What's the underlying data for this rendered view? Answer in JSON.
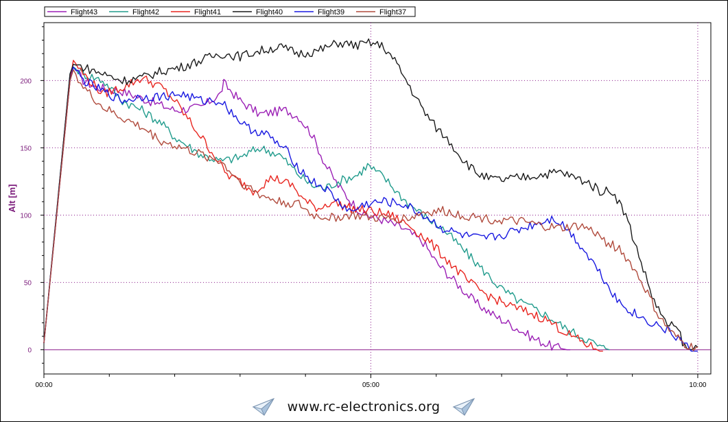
{
  "chart_data": {
    "type": "line",
    "ylabel": "Alt [m]",
    "xlabel": "",
    "xlim": [
      0,
      10.2
    ],
    "ylim": [
      -18,
      243
    ],
    "x_ticks": [
      {
        "v": 0,
        "label": "00:00"
      },
      {
        "v": 5,
        "label": "05:00"
      },
      {
        "v": 10,
        "label": "10:00"
      }
    ],
    "x_minor": [
      1,
      2,
      3,
      4,
      6,
      7,
      8,
      9
    ],
    "y_ticks": [
      {
        "v": 0,
        "label": "0"
      },
      {
        "v": 50,
        "label": "50"
      },
      {
        "v": 100,
        "label": "100"
      },
      {
        "v": 150,
        "label": "150"
      },
      {
        "v": 200,
        "label": "200"
      }
    ],
    "grid": true,
    "legend_position": "top-left",
    "series": [
      {
        "name": "Flight43",
        "color": "#9b1fb5",
        "points": [
          [
            0,
            5
          ],
          [
            0.4,
            205
          ],
          [
            0.45,
            210
          ],
          [
            0.6,
            200
          ],
          [
            0.8,
            195
          ],
          [
            1.2,
            192
          ],
          [
            1.6,
            185
          ],
          [
            2.0,
            178
          ],
          [
            2.4,
            180
          ],
          [
            2.7,
            190
          ],
          [
            2.75,
            198
          ],
          [
            3.0,
            185
          ],
          [
            3.3,
            175
          ],
          [
            3.7,
            178
          ],
          [
            3.9,
            173
          ],
          [
            4.1,
            160
          ],
          [
            4.3,
            138
          ],
          [
            4.5,
            122
          ],
          [
            4.7,
            110
          ],
          [
            4.9,
            100
          ],
          [
            5.1,
            98
          ],
          [
            5.5,
            90
          ],
          [
            5.8,
            80
          ],
          [
            6.0,
            65
          ],
          [
            6.3,
            50
          ],
          [
            6.6,
            35
          ],
          [
            6.9,
            25
          ],
          [
            7.2,
            17
          ],
          [
            7.5,
            8
          ],
          [
            7.8,
            2
          ],
          [
            8.0,
            0
          ],
          [
            8.05,
            0
          ]
        ]
      },
      {
        "name": "Flight42",
        "color": "#209b8c",
        "points": [
          [
            0,
            5
          ],
          [
            0.4,
            205
          ],
          [
            0.45,
            210
          ],
          [
            0.6,
            205
          ],
          [
            0.9,
            200
          ],
          [
            1.2,
            185
          ],
          [
            1.5,
            178
          ],
          [
            1.8,
            168
          ],
          [
            2.0,
            158
          ],
          [
            2.4,
            145
          ],
          [
            2.7,
            140
          ],
          [
            3.0,
            143
          ],
          [
            3.3,
            150
          ],
          [
            3.6,
            145
          ],
          [
            3.9,
            130
          ],
          [
            4.1,
            122
          ],
          [
            4.3,
            120
          ],
          [
            4.5,
            125
          ],
          [
            4.8,
            130
          ],
          [
            4.95,
            137
          ],
          [
            5.2,
            128
          ],
          [
            5.5,
            112
          ],
          [
            5.8,
            100
          ],
          [
            6.1,
            90
          ],
          [
            6.4,
            75
          ],
          [
            6.7,
            60
          ],
          [
            7.0,
            45
          ],
          [
            7.3,
            35
          ],
          [
            7.6,
            28
          ],
          [
            7.8,
            22
          ],
          [
            8.0,
            15
          ],
          [
            8.3,
            8
          ],
          [
            8.5,
            2
          ],
          [
            8.65,
            0
          ]
        ]
      },
      {
        "name": "Flight41",
        "color": "#e8251f",
        "points": [
          [
            0,
            5
          ],
          [
            0.4,
            200
          ],
          [
            0.45,
            215
          ],
          [
            0.6,
            205
          ],
          [
            0.9,
            190
          ],
          [
            1.2,
            195
          ],
          [
            1.5,
            202
          ],
          [
            1.8,
            195
          ],
          [
            2.0,
            185
          ],
          [
            2.3,
            165
          ],
          [
            2.6,
            145
          ],
          [
            2.8,
            130
          ],
          [
            3.0,
            125
          ],
          [
            3.2,
            118
          ],
          [
            3.5,
            128
          ],
          [
            3.8,
            122
          ],
          [
            4.0,
            110
          ],
          [
            4.2,
            105
          ],
          [
            4.4,
            110
          ],
          [
            4.7,
            105
          ],
          [
            5.0,
            103
          ],
          [
            5.3,
            100
          ],
          [
            5.6,
            92
          ],
          [
            5.9,
            80
          ],
          [
            6.2,
            65
          ],
          [
            6.5,
            50
          ],
          [
            6.8,
            40
          ],
          [
            7.1,
            33
          ],
          [
            7.4,
            28
          ],
          [
            7.7,
            22
          ],
          [
            8.0,
            12
          ],
          [
            8.3,
            4
          ],
          [
            8.5,
            -1
          ],
          [
            8.55,
            -1
          ]
        ]
      },
      {
        "name": "Flight40",
        "color": "#1a1a1a",
        "points": [
          [
            0,
            5
          ],
          [
            0.4,
            205
          ],
          [
            0.45,
            212
          ],
          [
            0.6,
            210
          ],
          [
            0.9,
            205
          ],
          [
            1.2,
            200
          ],
          [
            1.5,
            202
          ],
          [
            1.8,
            207
          ],
          [
            2.1,
            210
          ],
          [
            2.4,
            215
          ],
          [
            2.7,
            220
          ],
          [
            3.0,
            218
          ],
          [
            3.3,
            222
          ],
          [
            3.6,
            225
          ],
          [
            3.9,
            220
          ],
          [
            4.2,
            222
          ],
          [
            4.5,
            228
          ],
          [
            4.8,
            226
          ],
          [
            5.0,
            228
          ],
          [
            5.2,
            225
          ],
          [
            5.4,
            212
          ],
          [
            5.6,
            195
          ],
          [
            5.8,
            178
          ],
          [
            6.0,
            165
          ],
          [
            6.2,
            155
          ],
          [
            6.4,
            142
          ],
          [
            6.6,
            132
          ],
          [
            6.8,
            127
          ],
          [
            7.0,
            126
          ],
          [
            7.3,
            128
          ],
          [
            7.6,
            130
          ],
          [
            7.9,
            132
          ],
          [
            8.1,
            128
          ],
          [
            8.3,
            125
          ],
          [
            8.5,
            118
          ],
          [
            8.7,
            118
          ],
          [
            8.9,
            100
          ],
          [
            9.1,
            70
          ],
          [
            9.3,
            40
          ],
          [
            9.5,
            20
          ],
          [
            9.7,
            15
          ],
          [
            9.8,
            2
          ],
          [
            9.9,
            0
          ],
          [
            10.0,
            2
          ]
        ]
      },
      {
        "name": "Flight39",
        "color": "#1818e0",
        "points": [
          [
            0,
            5
          ],
          [
            0.4,
            200
          ],
          [
            0.45,
            210
          ],
          [
            0.6,
            200
          ],
          [
            0.9,
            192
          ],
          [
            1.2,
            185
          ],
          [
            1.5,
            188
          ],
          [
            1.8,
            188
          ],
          [
            2.1,
            190
          ],
          [
            2.4,
            185
          ],
          [
            2.7,
            185
          ],
          [
            2.9,
            175
          ],
          [
            3.1,
            165
          ],
          [
            3.4,
            160
          ],
          [
            3.7,
            148
          ],
          [
            3.9,
            135
          ],
          [
            4.1,
            125
          ],
          [
            4.3,
            120
          ],
          [
            4.5,
            110
          ],
          [
            4.7,
            102
          ],
          [
            4.9,
            108
          ],
          [
            5.2,
            110
          ],
          [
            5.5,
            108
          ],
          [
            5.8,
            100
          ],
          [
            6.1,
            90
          ],
          [
            6.4,
            85
          ],
          [
            6.7,
            82
          ],
          [
            7.0,
            85
          ],
          [
            7.3,
            90
          ],
          [
            7.6,
            95
          ],
          [
            7.8,
            98
          ],
          [
            8.0,
            90
          ],
          [
            8.2,
            78
          ],
          [
            8.4,
            65
          ],
          [
            8.6,
            50
          ],
          [
            8.8,
            35
          ],
          [
            9.0,
            28
          ],
          [
            9.2,
            22
          ],
          [
            9.4,
            18
          ],
          [
            9.6,
            12
          ],
          [
            9.8,
            5
          ],
          [
            9.9,
            -1
          ],
          [
            10.0,
            -1
          ]
        ]
      },
      {
        "name": "Flight37",
        "color": "#b04a3c",
        "points": [
          [
            0,
            5
          ],
          [
            0.4,
            200
          ],
          [
            0.45,
            208
          ],
          [
            0.6,
            195
          ],
          [
            0.9,
            180
          ],
          [
            1.2,
            172
          ],
          [
            1.5,
            165
          ],
          [
            1.8,
            155
          ],
          [
            2.1,
            150
          ],
          [
            2.4,
            145
          ],
          [
            2.7,
            140
          ],
          [
            3.0,
            125
          ],
          [
            3.3,
            115
          ],
          [
            3.6,
            110
          ],
          [
            3.9,
            108
          ],
          [
            4.1,
            100
          ],
          [
            4.4,
            98
          ],
          [
            4.7,
            100
          ],
          [
            5.0,
            98
          ],
          [
            5.3,
            97
          ],
          [
            5.6,
            98
          ],
          [
            5.8,
            102
          ],
          [
            6.1,
            103
          ],
          [
            6.4,
            100
          ],
          [
            6.7,
            98
          ],
          [
            7.0,
            96
          ],
          [
            7.3,
            95
          ],
          [
            7.6,
            92
          ],
          [
            7.9,
            90
          ],
          [
            8.2,
            92
          ],
          [
            8.4,
            88
          ],
          [
            8.6,
            80
          ],
          [
            8.8,
            75
          ],
          [
            9.0,
            62
          ],
          [
            9.2,
            45
          ],
          [
            9.4,
            25
          ],
          [
            9.6,
            12
          ],
          [
            9.8,
            4
          ],
          [
            9.9,
            2
          ],
          [
            10.0,
            2
          ]
        ]
      }
    ]
  },
  "footer": {
    "url_text": "www.rc-electronics.org",
    "left_icon": "paper-plane-icon",
    "right_icon": "paper-plane-icon"
  },
  "colors": {
    "grid": "#8a1a8a",
    "zero_line": "#8a1a8a",
    "axis_label": "#7a1a7a",
    "tick_label": "#7a1a7a"
  }
}
